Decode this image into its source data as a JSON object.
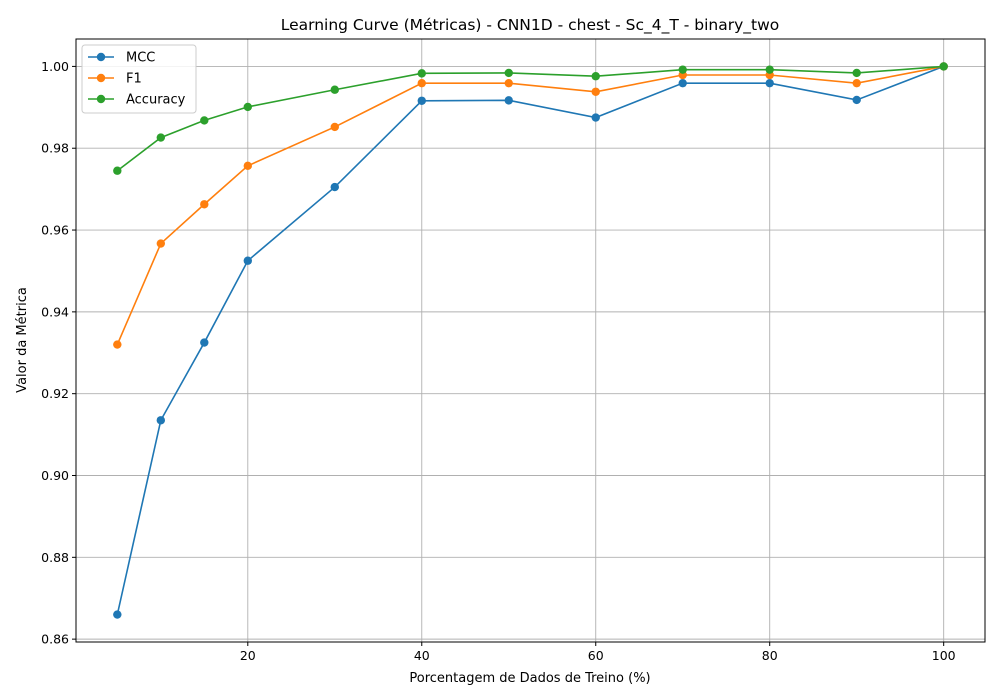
{
  "chart_data": {
    "type": "line",
    "title": "Learning Curve (Métricas) - CNN1D - chest - Sc_4_T - binary_two",
    "xlabel": "Porcentagem de Dados de Treino (%)",
    "ylabel": "Valor da Métrica",
    "xlim": [
      0.25,
      104.75
    ],
    "ylim": [
      0.8593,
      1.0067
    ],
    "xticks": [
      20,
      40,
      60,
      80,
      100
    ],
    "yticks": [
      0.86,
      0.88,
      0.9,
      0.92,
      0.94,
      0.96,
      0.98,
      1.0
    ],
    "ytick_labels": [
      "0.86",
      "0.88",
      "0.90",
      "0.92",
      "0.94",
      "0.96",
      "0.98",
      "1.00"
    ],
    "grid": true,
    "legend_position": "top-left",
    "x": [
      5,
      10,
      15,
      20,
      30,
      40,
      50,
      60,
      70,
      80,
      90,
      100
    ],
    "series": [
      {
        "name": "MCC",
        "color": "#1f77b4",
        "values": [
          0.866,
          0.9135,
          0.9325,
          0.9525,
          0.9705,
          0.9916,
          0.9917,
          0.9875,
          0.9959,
          0.9959,
          0.9918,
          1.0
        ]
      },
      {
        "name": "F1",
        "color": "#ff7f0e",
        "values": [
          0.932,
          0.9567,
          0.9663,
          0.9757,
          0.9852,
          0.9959,
          0.9959,
          0.9938,
          0.9979,
          0.9979,
          0.9959,
          1.0
        ]
      },
      {
        "name": "Accuracy",
        "color": "#2ca02c",
        "values": [
          0.9745,
          0.9826,
          0.9868,
          0.9901,
          0.9943,
          0.9983,
          0.9984,
          0.9976,
          0.9992,
          0.9992,
          0.9984,
          1.0
        ]
      }
    ]
  }
}
